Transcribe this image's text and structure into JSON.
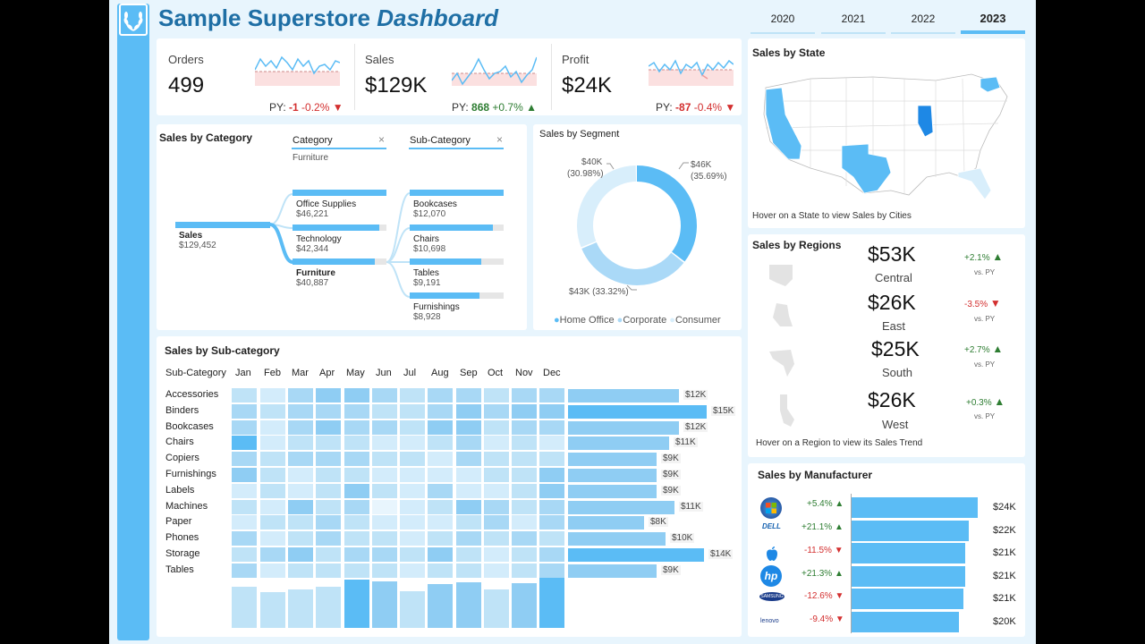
{
  "title": {
    "main": "Sample Superstore",
    "emph": "Dashboard"
  },
  "years": [
    "2020",
    "2021",
    "2022",
    "2023"
  ],
  "active_year": "2023",
  "kpis": [
    {
      "label": "Orders",
      "value": "499",
      "py_prefix": "PY:",
      "py_diff": "-1",
      "py_pct": "-0.2%",
      "trend": "down"
    },
    {
      "label": "Sales",
      "value": "$129K",
      "py_prefix": "PY:",
      "py_diff": "868",
      "py_pct": "+0.7%",
      "trend": "up"
    },
    {
      "label": "Profit",
      "value": "$24K",
      "py_prefix": "PY:",
      "py_diff": "-87",
      "py_pct": "-0.4%",
      "trend": "down"
    }
  ],
  "category": {
    "title": "Sales by Category",
    "col1_header": "Category",
    "col1_sub": "Furniture",
    "col2_header": "Sub-Category",
    "root": {
      "label": "Sales",
      "value": "$129,452"
    },
    "categories": [
      {
        "label": "Office Supplies",
        "value": "$46,221",
        "fill": 1.0
      },
      {
        "label": "Technology",
        "value": "$42,344",
        "fill": 0.92
      },
      {
        "label": "Furniture",
        "value": "$40,887",
        "fill": 0.88,
        "selected": true
      }
    ],
    "subcategories": [
      {
        "label": "Bookcases",
        "value": "$12,070",
        "fill": 1.0
      },
      {
        "label": "Chairs",
        "value": "$10,698",
        "fill": 0.89
      },
      {
        "label": "Tables",
        "value": "$9,191",
        "fill": 0.76
      },
      {
        "label": "Furnishings",
        "value": "$8,928",
        "fill": 0.74
      }
    ]
  },
  "segment": {
    "title": "Sales by Segment",
    "slices": [
      {
        "name": "Home Office",
        "label1": "$46K",
        "label2": "(35.69%)",
        "pct": 35.69,
        "color": "#5bbcf5"
      },
      {
        "name": "Corporate",
        "label1": "$43K",
        "label2": "(33.32%)",
        "pct": 33.32,
        "color": "#aad9f7"
      },
      {
        "name": "Consumer",
        "label1": "$40K",
        "label2": "(30.98%)",
        "pct": 30.98,
        "color": "#d8eefb"
      }
    ]
  },
  "state": {
    "title": "Sales by State",
    "hint": "Hover on a State to view Sales by Cities"
  },
  "regions": {
    "title": "Sales by Regions",
    "vs_label": "vs. PY",
    "items": [
      {
        "value": "$53K",
        "name": "Central",
        "delta": "+2.1%",
        "trend": "up"
      },
      {
        "value": "$26K",
        "name": "East",
        "delta": "-3.5%",
        "trend": "down"
      },
      {
        "value": "$25K",
        "name": "South",
        "delta": "+2.7%",
        "trend": "up"
      },
      {
        "value": "$26K",
        "name": "West",
        "delta": "+0.3%",
        "trend": "up"
      }
    ],
    "hint": "Hover on a Region to view its Sales Trend"
  },
  "subcat": {
    "title": "Sales by Sub-category",
    "row_header": "Sub-Category",
    "months": [
      "Jan",
      "Feb",
      "Mar",
      "Apr",
      "May",
      "Jun",
      "Jul",
      "Aug",
      "Sep",
      "Oct",
      "Nov",
      "Dec"
    ],
    "rows": [
      {
        "name": "Accessories",
        "total": "$12K",
        "share": 0.8
      },
      {
        "name": "Binders",
        "total": "$15K",
        "share": 1.0
      },
      {
        "name": "Bookcases",
        "total": "$12K",
        "share": 0.8
      },
      {
        "name": "Chairs",
        "total": "$11K",
        "share": 0.73
      },
      {
        "name": "Copiers",
        "total": "$9K",
        "share": 0.64
      },
      {
        "name": "Furnishings",
        "total": "$9K",
        "share": 0.64
      },
      {
        "name": "Labels",
        "total": "$9K",
        "share": 0.64
      },
      {
        "name": "Machines",
        "total": "$11K",
        "share": 0.77
      },
      {
        "name": "Paper",
        "total": "$8K",
        "share": 0.55
      },
      {
        "name": "Phones",
        "total": "$10K",
        "share": 0.7
      },
      {
        "name": "Storage",
        "total": "$14K",
        "share": 0.98
      },
      {
        "name": "Tables",
        "total": "$9K",
        "share": 0.64
      }
    ],
    "month_share": [
      0.82,
      0.72,
      0.76,
      0.82,
      0.97,
      0.93,
      0.74,
      0.88,
      0.91,
      0.76,
      0.9,
      1.0
    ]
  },
  "manufacturer": {
    "title": "Sales by Manufacturer",
    "items": [
      {
        "logo": "windows-logo",
        "delta": "+5.4%",
        "trend": "up",
        "value": "$24K",
        "share": 1.0
      },
      {
        "logo": "dell-logo",
        "delta": "+21.1%",
        "trend": "up",
        "value": "$22K",
        "share": 0.93
      },
      {
        "logo": "apple-logo",
        "delta": "-11.5%",
        "trend": "down",
        "value": "$21K",
        "share": 0.9
      },
      {
        "logo": "hp-logo",
        "delta": "+21.3%",
        "trend": "up",
        "value": "$21K",
        "share": 0.9
      },
      {
        "logo": "samsung-logo",
        "delta": "-12.6%",
        "trend": "down",
        "value": "$21K",
        "share": 0.89
      },
      {
        "logo": "lenovo-logo",
        "delta": "-9.4%",
        "trend": "down",
        "value": "$20K",
        "share": 0.85
      }
    ],
    "logo_text": {
      "dell": "DELL",
      "hp": "hp",
      "samsung": "SAMSUNG",
      "lenovo": "lenovo"
    }
  },
  "colors": {
    "accent": "#5bbcf5",
    "title": "#1f6fa5",
    "neg": "#d32f2f",
    "pos": "#2e7d32"
  }
}
